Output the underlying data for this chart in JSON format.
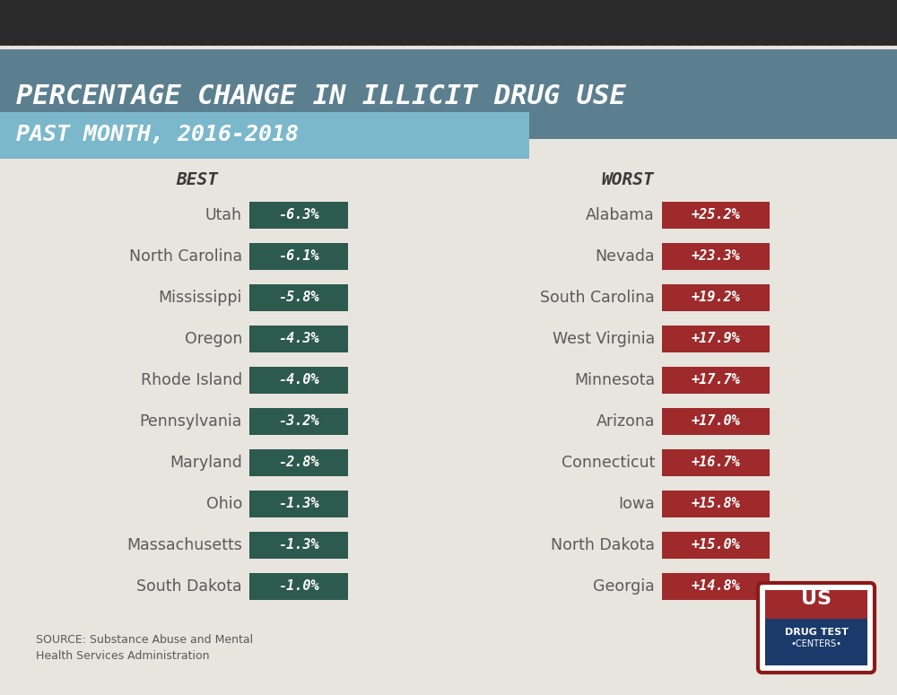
{
  "title_line1": "PERCENTAGE CHANGE IN ILLICIT DRUG USE",
  "title_line2": "PAST MONTH, 2016-2018",
  "title_bg_color": "#5b7f8f",
  "subtitle_bg_color": "#7bb8cc",
  "header_best": "BEST",
  "header_worst": "WORST",
  "background_color": "#e8e4de",
  "best_states": [
    "Utah",
    "North Carolina",
    "Mississippi",
    "Oregon",
    "Rhode Island",
    "Pennsylvania",
    "Maryland",
    "Ohio",
    "Massachusetts",
    "South Dakota"
  ],
  "best_values": [
    "-6.3%",
    "-6.1%",
    "-5.8%",
    "-4.3%",
    "-4.0%",
    "-3.2%",
    "-2.8%",
    "-1.3%",
    "-1.3%",
    "-1.0%"
  ],
  "worst_states": [
    "Alabama",
    "Nevada",
    "South Carolina",
    "West Virginia",
    "Minnesota",
    "Arizona",
    "Connecticut",
    "Iowa",
    "North Dakota",
    "Georgia"
  ],
  "worst_values": [
    "+25.2%",
    "+23.3%",
    "+19.2%",
    "+17.9%",
    "+17.7%",
    "+17.0%",
    "+16.7%",
    "+15.8%",
    "+15.0%",
    "+14.8%"
  ],
  "best_box_color": "#2d5a4e",
  "worst_box_color": "#9e2a2b",
  "box_text_color": "#ffffff",
  "state_text_color": "#5a5a5a",
  "header_text_color": "#3a3a3a",
  "source_text": "SOURCE: Substance Abuse and Mental\nHealth Services Administration",
  "stripe_color": "#2a2a2a"
}
